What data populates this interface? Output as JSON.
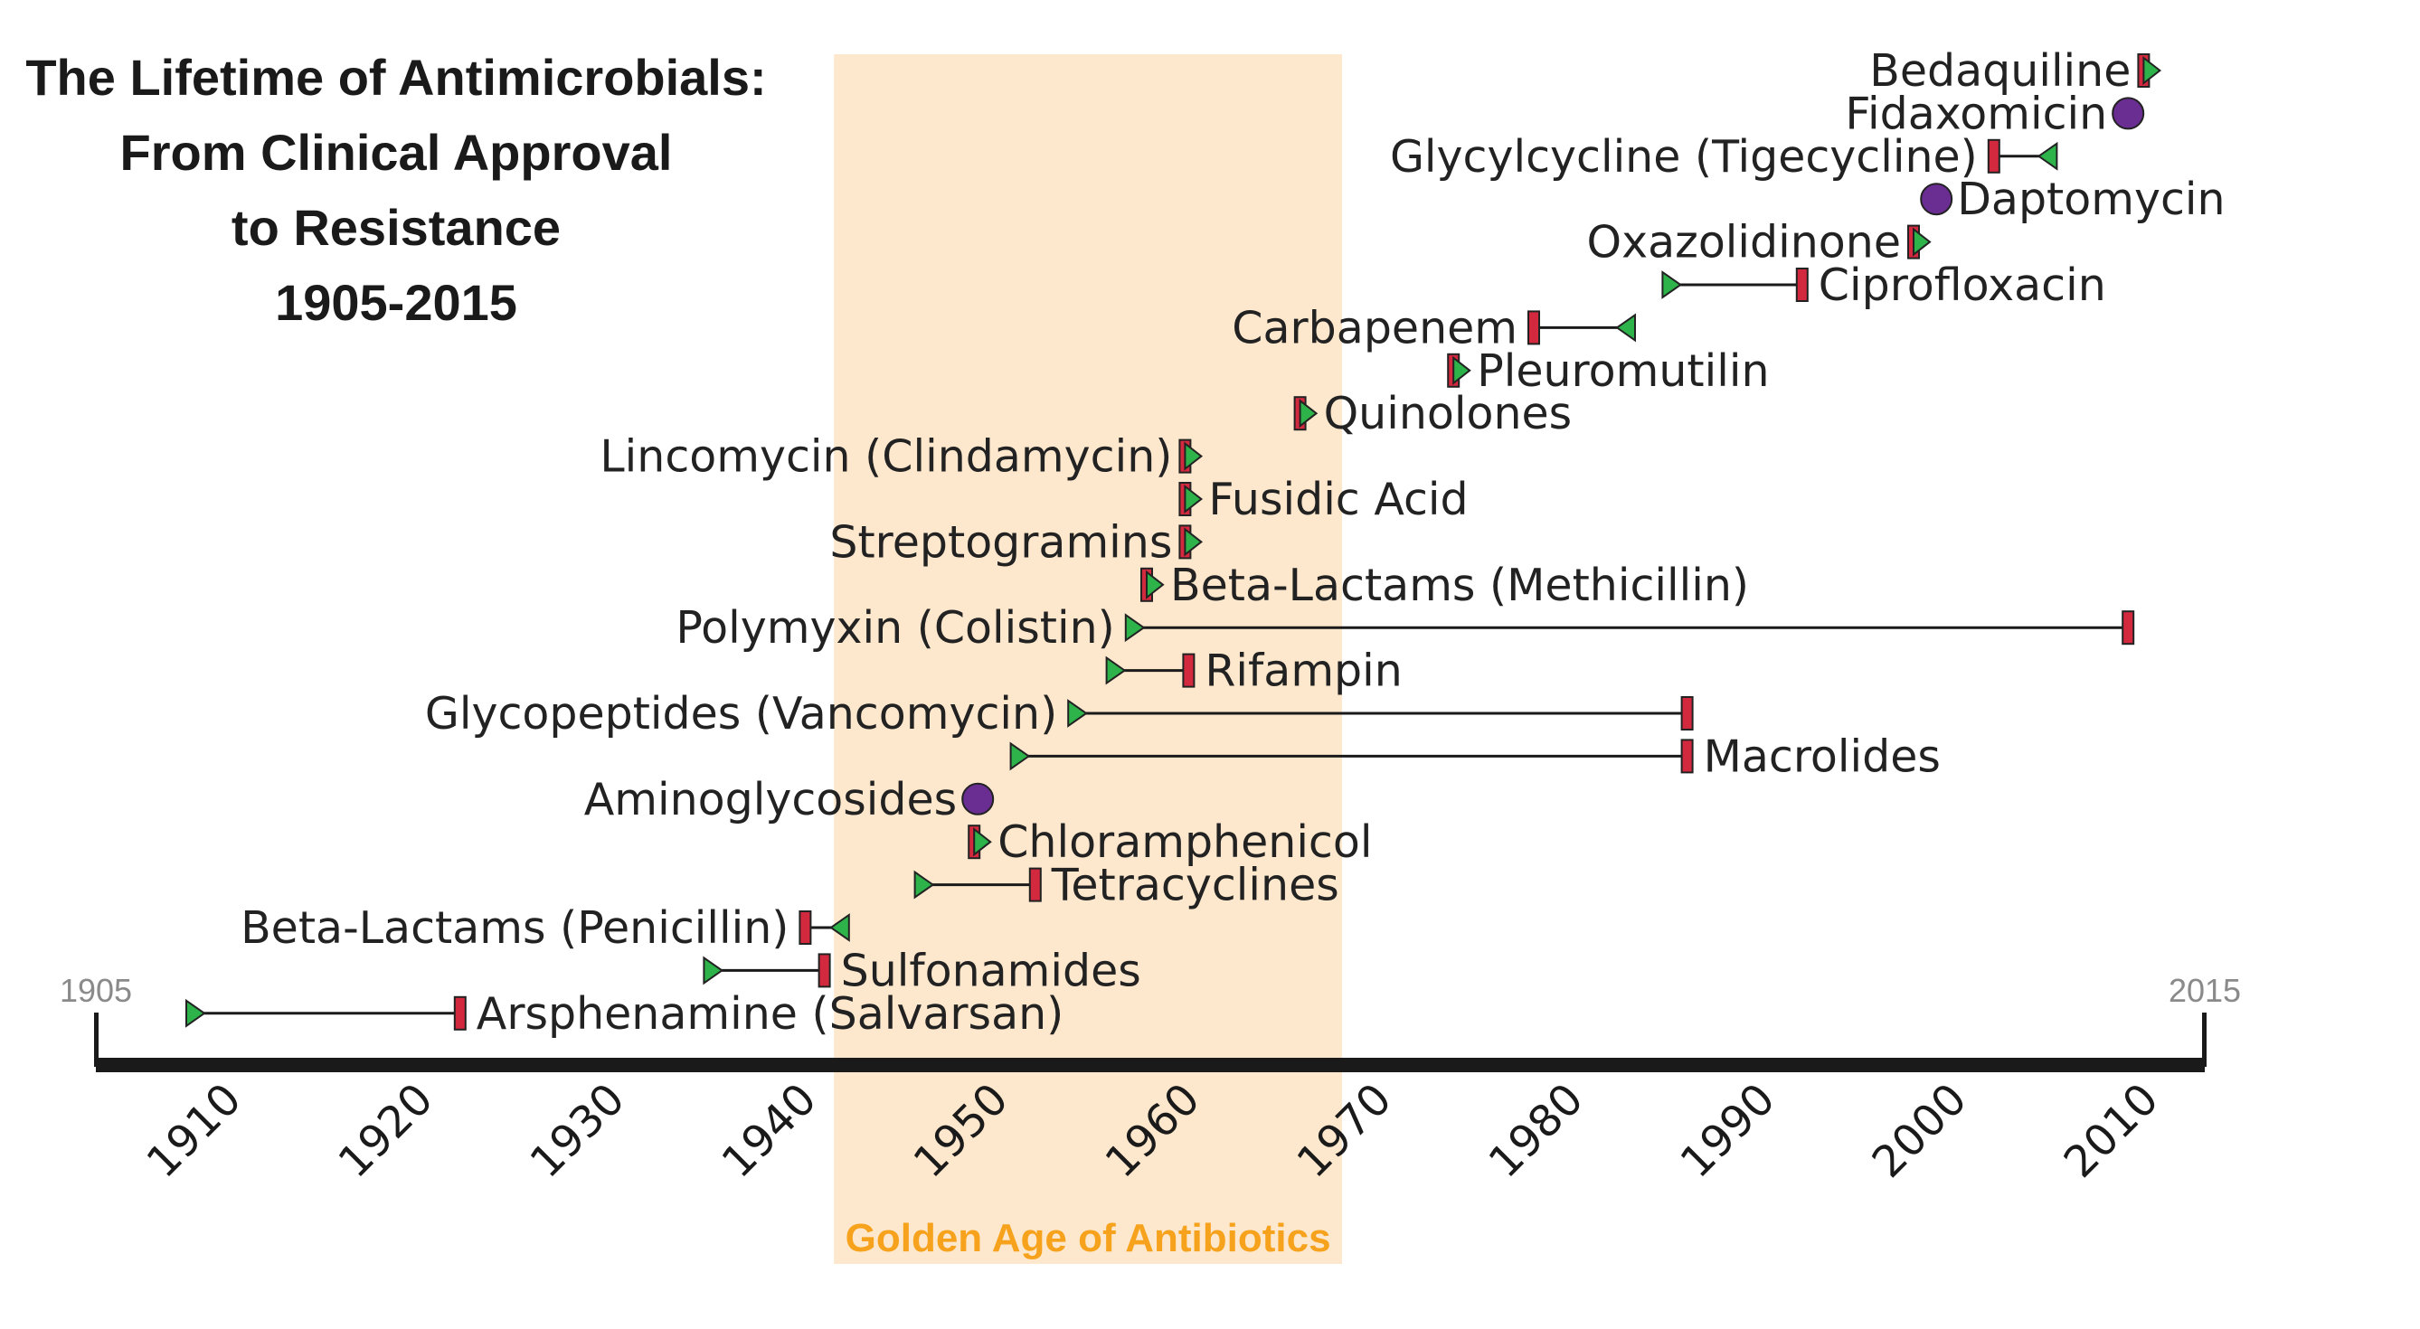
{
  "title_lines": [
    "The Lifetime of Antimicrobials:",
    "From Clinical Approval",
    "to Resistance",
    "1905-2015"
  ],
  "golden_age_label": "Golden Age of Antibiotics",
  "colors": {
    "approval_marker": "#2db34a",
    "resistance_marker": "#d2293f",
    "no_resistance_marker": "#6a2d91",
    "connector": "#1a1a1a",
    "axis": "#1a1a1a",
    "golden_band": "#fde4c4",
    "golden_label": "#f7a21d"
  },
  "chart_data": {
    "type": "timeline",
    "title": "The Lifetime of Antimicrobials: From Clinical Approval to Resistance 1905-2015",
    "xlim": [
      1905,
      2015
    ],
    "xticks": [
      1910,
      1920,
      1930,
      1940,
      1950,
      1960,
      1970,
      1980,
      1990,
      2000,
      2010
    ],
    "xtick_labels": [
      "1910",
      "1920",
      "1930",
      "1940",
      "1950",
      "1960",
      "1970",
      "1980",
      "1990",
      "2000",
      "2010"
    ],
    "endpoint_labels": [
      "1905",
      "2015"
    ],
    "highlight_band": {
      "label": "Golden Age of Antibiotics",
      "start": 1943.5,
      "end": 1970
    },
    "marker_legend": {
      "green_triangle": "clinical approval",
      "red_bar": "resistance identified",
      "purple_circle": "no resistance"
    },
    "drugs": [
      {
        "name": "Bedaquiline",
        "approval": 2012,
        "resistance": 2012,
        "label_side": "left"
      },
      {
        "name": "Fidaxomicin",
        "approval": 2011,
        "resistance": null,
        "label_side": "left"
      },
      {
        "name": "Glycylcycline (Tigecycline)",
        "approval": 2007,
        "resistance": 2004,
        "label_side": "left"
      },
      {
        "name": "Daptomycin",
        "approval": 2001,
        "resistance": null,
        "label_side": "right"
      },
      {
        "name": "Oxazolidinone",
        "approval": 2000,
        "resistance": 2000,
        "label_side": "left"
      },
      {
        "name": "Ciprofloxacin",
        "approval": 1987,
        "resistance": 1994,
        "label_side": "right"
      },
      {
        "name": "Carbapenem",
        "approval": 1985,
        "resistance": 1980,
        "label_side": "left"
      },
      {
        "name": "Pleuromutilin",
        "approval": 1976,
        "resistance": 1976,
        "label_side": "right"
      },
      {
        "name": "Quinolones",
        "approval": 1968,
        "resistance": 1968,
        "label_side": "right"
      },
      {
        "name": "Lincomycin (Clindamycin)",
        "approval": 1962,
        "resistance": 1962,
        "label_side": "left"
      },
      {
        "name": "Fusidic Acid",
        "approval": 1962,
        "resistance": 1962,
        "label_side": "right"
      },
      {
        "name": "Streptogramins",
        "approval": 1962,
        "resistance": 1962,
        "label_side": "left"
      },
      {
        "name": "Beta-Lactams (Methicillin)",
        "approval": 1960,
        "resistance": 1960,
        "label_side": "right"
      },
      {
        "name": "Polymyxin (Colistin)",
        "approval": 1959,
        "resistance": 2011,
        "label_side": "left"
      },
      {
        "name": "Rifampin",
        "approval": 1958,
        "resistance": 1962,
        "label_side": "right"
      },
      {
        "name": "Glycopeptides (Vancomycin)",
        "approval": 1956,
        "resistance": 1988,
        "label_side": "left"
      },
      {
        "name": "Macrolides",
        "approval": 1953,
        "resistance": 1988,
        "label_side": "right"
      },
      {
        "name": "Aminoglycosides",
        "approval": 1951,
        "resistance": null,
        "label_side": "left"
      },
      {
        "name": "Chloramphenicol",
        "approval": 1951,
        "resistance": 1951,
        "label_side": "right"
      },
      {
        "name": "Tetracyclines",
        "approval": 1948,
        "resistance": 1954,
        "label_side": "right"
      },
      {
        "name": "Beta-Lactams (Penicillin)",
        "approval": 1944,
        "resistance": 1942,
        "label_side": "left"
      },
      {
        "name": "Sulfonamides",
        "approval": 1937,
        "resistance": 1943,
        "label_side": "right"
      },
      {
        "name": "Arsphenamine (Salvarsan)",
        "approval": 1910,
        "resistance": 1924,
        "label_side": "right"
      }
    ]
  }
}
